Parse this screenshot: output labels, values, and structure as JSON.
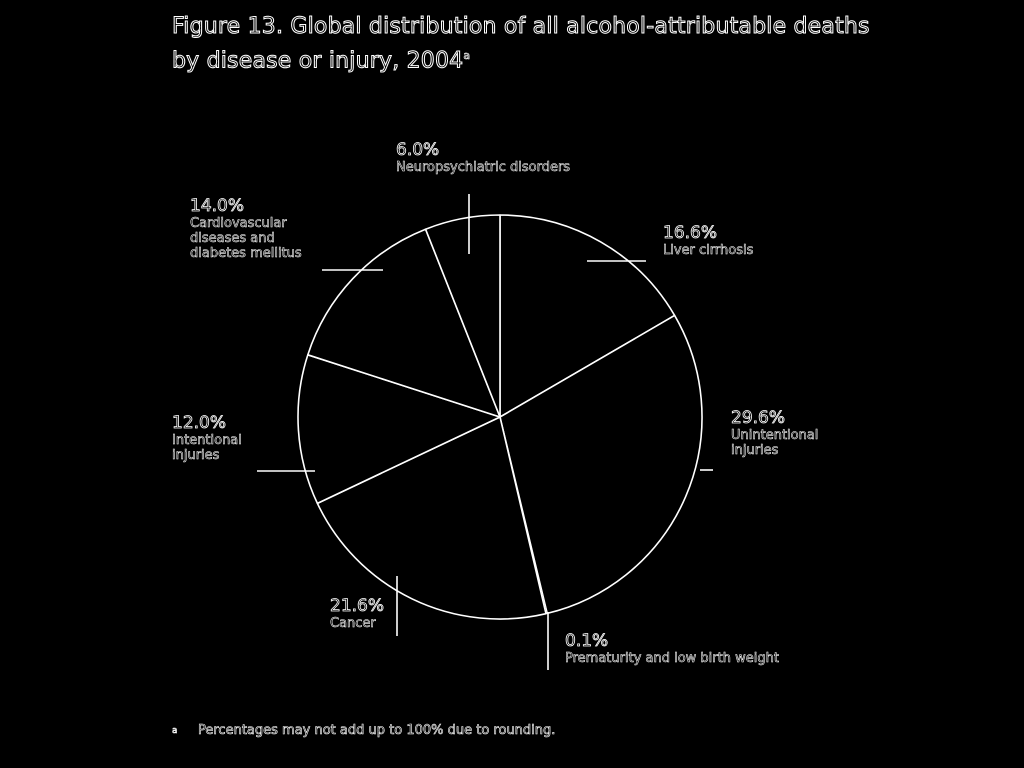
{
  "title": "Figure 13. Global distribution of all alcohol-attributable deaths by disease or injury, 2004",
  "title_footnote_mark": "a",
  "footnote": {
    "mark": "a",
    "text": "Percentages may not add up to 100% due to rounding."
  },
  "chart_data": {
    "type": "pie",
    "title": "Figure 13. Global distribution of all alcohol-attributable deaths by disease or injury, 2004",
    "slices": [
      {
        "label": "Liver cirrhosis",
        "pct_label": "16.6%",
        "value": 16.6
      },
      {
        "label": "Unintentional injuries",
        "pct_label": "29.6%",
        "value": 29.6
      },
      {
        "label": "Prematurity and low birth weight",
        "pct_label": "0.1%",
        "value": 0.1
      },
      {
        "label": "Cancer",
        "pct_label": "21.6%",
        "value": 21.6
      },
      {
        "label": "Intentional injuries",
        "pct_label": "12.0%",
        "value": 12.0
      },
      {
        "label": "Cardiovascular diseases and diabetes mellitus",
        "pct_label": "14.0%",
        "value": 14.0
      },
      {
        "label": "Neuropsychiatric disorders",
        "pct_label": "6.0%",
        "value": 6.0
      }
    ],
    "start": "12 o'clock",
    "direction": "clockwise",
    "colors": {
      "background": "#000000",
      "stroke": "#ffffff"
    }
  }
}
